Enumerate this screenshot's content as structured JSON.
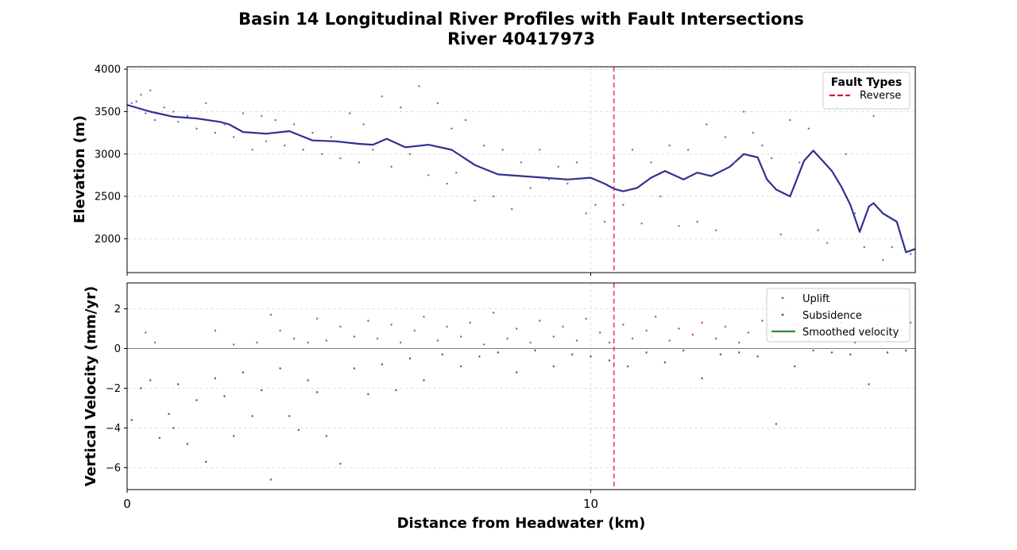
{
  "title": "Basin 14 Longitudinal River Profiles with Fault Intersections",
  "subtitle": "River 40417973",
  "xlabel": "Distance from Headwater (km)",
  "colors": {
    "profile": "#2e3192",
    "points": "#6a6acb",
    "uplift": "#c0504d",
    "subsidence": "#4b4ba8",
    "fault": "#dc143c",
    "smoothed": "#2e8b2e",
    "zero_line": "#808080"
  },
  "chart_data": [
    {
      "type": "line",
      "name": "elevation-profile",
      "ylabel": "Elevation (m)",
      "xlim": [
        0,
        17
      ],
      "ylim": [
        1600,
        4030
      ],
      "xticks": [
        0,
        10
      ],
      "yticks": [
        2000,
        2500,
        3000,
        3500,
        4000
      ],
      "grid": true,
      "legend": {
        "title": "Fault Types",
        "placement": "top-right",
        "entries": [
          {
            "label": "Reverse",
            "style": "dashed",
            "color": "#dc143c"
          }
        ]
      },
      "fault_lines": [
        {
          "type": "Reverse",
          "x": 10.5
        }
      ],
      "series": [
        {
          "style": "line",
          "x": [
            0,
            0.5,
            1,
            1.5,
            2,
            2.2,
            2.5,
            3,
            3.5,
            4,
            4.5,
            5,
            5.3,
            5.6,
            6,
            6.5,
            7,
            7.5,
            8,
            8.5,
            9,
            9.5,
            10,
            10.3,
            10.5,
            10.7,
            11,
            11.3,
            11.6,
            12,
            12.3,
            12.6,
            13,
            13.3,
            13.6,
            13.8,
            14,
            14.3,
            14.6,
            14.8,
            15,
            15.2,
            15.4,
            15.6,
            15.8,
            16,
            16.1,
            16.3,
            16.6,
            16.8,
            17
          ],
          "y": [
            3580,
            3500,
            3440,
            3420,
            3380,
            3350,
            3260,
            3240,
            3270,
            3160,
            3150,
            3120,
            3110,
            3180,
            3080,
            3110,
            3050,
            2870,
            2760,
            2740,
            2720,
            2700,
            2720,
            2650,
            2590,
            2560,
            2600,
            2720,
            2800,
            2700,
            2780,
            2740,
            2850,
            3000,
            2960,
            2700,
            2580,
            2500,
            2920,
            3040,
            2920,
            2800,
            2620,
            2400,
            2080,
            2380,
            2420,
            2300,
            2200,
            1840,
            1880
          ]
        },
        {
          "style": "scatter",
          "x": [
            0.1,
            0.2,
            0.3,
            0.4,
            0.5,
            0.6,
            0.8,
            1.0,
            1.1,
            1.3,
            1.5,
            1.7,
            1.9,
            2.1,
            2.3,
            2.5,
            2.7,
            2.9,
            3.0,
            3.2,
            3.4,
            3.6,
            3.8,
            4.0,
            4.2,
            4.4,
            4.6,
            4.8,
            5.0,
            5.1,
            5.3,
            5.5,
            5.7,
            5.9,
            6.1,
            6.3,
            6.5,
            6.7,
            6.9,
            7.0,
            7.1,
            7.3,
            7.5,
            7.7,
            7.9,
            8.1,
            8.3,
            8.5,
            8.7,
            8.9,
            9.1,
            9.3,
            9.5,
            9.7,
            9.9,
            10.1,
            10.3,
            10.5,
            10.7,
            10.9,
            11.1,
            11.3,
            11.5,
            11.7,
            11.9,
            12.1,
            12.3,
            12.5,
            12.7,
            12.9,
            13.1,
            13.3,
            13.5,
            13.7,
            13.9,
            14.1,
            14.3,
            14.5,
            14.7,
            14.9,
            15.1,
            15.3,
            15.5,
            15.7,
            15.9,
            16.1,
            16.3,
            16.5,
            16.7,
            16.9
          ],
          "y": [
            3600,
            3620,
            3700,
            3480,
            3750,
            3400,
            3550,
            3500,
            3380,
            3450,
            3300,
            3600,
            3250,
            3350,
            3200,
            3480,
            3050,
            3450,
            3150,
            3400,
            3100,
            3350,
            3050,
            3250,
            3000,
            3200,
            2950,
            3480,
            2900,
            3350,
            3050,
            3680,
            2850,
            3550,
            3000,
            3800,
            2750,
            3600,
            2650,
            3300,
            2780,
            3400,
            2450,
            3100,
            2500,
            3050,
            2350,
            2900,
            2600,
            3050,
            2700,
            2850,
            2650,
            2900,
            2300,
            2400,
            2200,
            2950,
            2400,
            3050,
            2180,
            2900,
            2500,
            3100,
            2150,
            3050,
            2200,
            3350,
            2100,
            3200,
            2900,
            3500,
            3250,
            3100,
            2950,
            2050,
            3400,
            2900,
            3300,
            2100,
            1950,
            3550,
            3000,
            2300,
            1900,
            3450,
            1750,
            1900,
            2000,
            1820
          ]
        }
      ]
    },
    {
      "type": "scatter",
      "name": "vertical-velocity",
      "ylabel": "Vertical Velocity (mm/yr)",
      "xlim": [
        0,
        17
      ],
      "ylim": [
        -7.1,
        3.3
      ],
      "xticks": [
        0,
        10
      ],
      "yticks": [
        -6,
        -4,
        -2,
        0,
        2
      ],
      "grid": true,
      "zero_line": 0,
      "fault_lines": [
        {
          "type": "Reverse",
          "x": 10.5
        }
      ],
      "legend": {
        "placement": "top-right",
        "entries": [
          {
            "label": "Uplift",
            "style": "dot",
            "color": "#c0504d"
          },
          {
            "label": "Subsidence",
            "style": "dot",
            "color": "#4b4ba8"
          },
          {
            "label": "Smoothed velocity",
            "style": "line",
            "color": "#2e8b2e"
          }
        ]
      },
      "series": [
        {
          "name": "Uplift",
          "x": [
            0.4,
            0.6,
            1.9,
            2.3,
            2.8,
            3.1,
            3.3,
            3.6,
            3.9,
            4.1,
            4.3,
            4.6,
            4.9,
            5.2,
            5.4,
            5.7,
            5.9,
            6.2,
            6.4,
            6.7,
            6.9,
            7.2,
            7.4,
            7.7,
            7.9,
            8.2,
            8.4,
            8.7,
            8.9,
            9.2,
            9.4,
            9.7,
            9.9,
            10.2,
            10.4,
            10.7,
            10.9,
            11.2,
            11.4,
            11.7,
            11.9,
            12.2,
            12.4,
            12.7,
            12.9,
            13.2,
            13.4,
            13.7,
            13.9,
            14.2,
            14.4,
            14.7,
            14.9,
            15.2,
            15.4,
            15.7,
            15.9,
            16.2,
            16.4,
            16.7,
            16.9
          ],
          "y": [
            0.8,
            0.3,
            0.9,
            0.2,
            0.3,
            1.7,
            0.9,
            0.5,
            0.3,
            1.5,
            0.4,
            1.1,
            0.6,
            1.4,
            0.5,
            1.2,
            0.3,
            0.9,
            1.6,
            0.4,
            1.1,
            0.6,
            1.3,
            0.2,
            1.8,
            0.5,
            1.0,
            0.3,
            1.4,
            0.6,
            1.1,
            0.4,
            1.5,
            0.8,
            0.3,
            1.2,
            0.5,
            0.9,
            1.6,
            0.4,
            1.0,
            0.7,
            1.3,
            0.5,
            1.1,
            0.3,
            0.8,
            1.4,
            0.6,
            0.9,
            1.2,
            0.4,
            1.0,
            0.7,
            1.3,
            0.3,
            0.8,
            1.2,
            0.5,
            0.9,
            1.3
          ]
        },
        {
          "name": "Subsidence",
          "x": [
            0.1,
            0.3,
            0.5,
            0.7,
            0.9,
            1.0,
            1.1,
            1.3,
            1.5,
            1.7,
            1.9,
            2.1,
            2.3,
            2.5,
            2.7,
            2.9,
            3.1,
            3.3,
            3.5,
            3.7,
            3.9,
            4.1,
            4.3,
            4.6,
            4.9,
            5.2,
            5.5,
            5.8,
            6.1,
            6.4,
            6.8,
            7.2,
            7.6,
            8.0,
            8.4,
            8.8,
            9.2,
            9.6,
            10.0,
            10.4,
            10.8,
            11.2,
            11.6,
            12.0,
            12.4,
            12.8,
            13.2,
            13.6,
            14.0,
            14.4,
            14.8,
            15.2,
            15.6,
            16.0,
            16.4,
            16.8
          ],
          "y": [
            -3.6,
            -2.0,
            -1.6,
            -4.5,
            -3.3,
            -4.0,
            -1.8,
            -4.8,
            -2.6,
            -5.7,
            -1.5,
            -2.4,
            -4.4,
            -1.2,
            -3.4,
            -2.1,
            -6.6,
            -1.0,
            -3.4,
            -4.1,
            -1.6,
            -2.2,
            -4.4,
            -5.8,
            -1.0,
            -2.3,
            -0.8,
            -2.1,
            -0.5,
            -1.6,
            -0.3,
            -0.9,
            -0.4,
            -0.2,
            -1.2,
            -0.1,
            -0.9,
            -0.3,
            -0.4,
            -0.6,
            -0.9,
            -0.2,
            -0.7,
            -0.1,
            -1.5,
            -0.3,
            -0.2,
            -0.4,
            -3.8,
            -0.9,
            -0.1,
            -0.2,
            -0.3,
            -1.8,
            -0.2,
            -0.1
          ]
        }
      ]
    }
  ]
}
